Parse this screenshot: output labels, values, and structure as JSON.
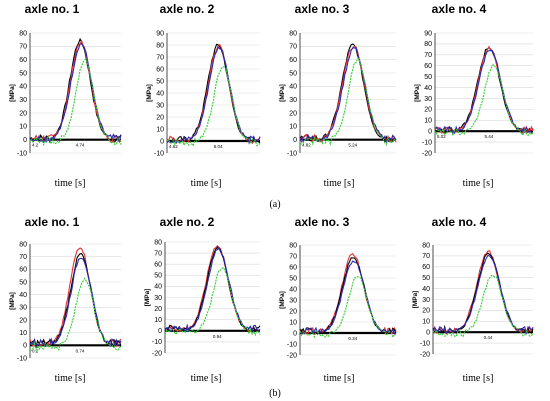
{
  "captions": {
    "a": "(a)",
    "b": "(b)"
  },
  "chart_data": [
    {
      "type": "line",
      "title": "axle no. 1",
      "ylabel": "[MPa]",
      "xlabel": "time [s]",
      "ylim": [
        -10,
        80
      ],
      "yticks": [
        -10,
        0,
        10,
        20,
        30,
        40,
        50,
        60,
        70,
        80
      ],
      "x_marks": [
        "4.74"
      ],
      "x_start_label": "4.2",
      "series": [
        {
          "color": "#000000",
          "peak": 74,
          "tail": 2
        },
        {
          "color": "#e03030",
          "peak": 73,
          "tail": 2
        },
        {
          "color": "#2b2bb0",
          "peak": 72,
          "tail": 2
        },
        {
          "color": "#33cc33",
          "peak": 60,
          "tail": 0
        }
      ]
    },
    {
      "type": "line",
      "title": "axle no. 2",
      "ylabel": "[MPa]",
      "xlabel": "time [s]",
      "ylim": [
        -10,
        90
      ],
      "yticks": [
        -10,
        0,
        10,
        20,
        30,
        40,
        50,
        60,
        70,
        80,
        90
      ],
      "x_marks": [
        "5.04"
      ],
      "x_start_label": "4.62",
      "series": [
        {
          "color": "#000000",
          "peak": 80,
          "tail": 2
        },
        {
          "color": "#e03030",
          "peak": 79,
          "tail": 2
        },
        {
          "color": "#2b2bb0",
          "peak": 78,
          "tail": 2
        },
        {
          "color": "#33cc33",
          "peak": 63,
          "tail": 0
        }
      ]
    },
    {
      "type": "line",
      "title": "axle no. 3",
      "ylabel": "[MPa]",
      "xlabel": "time [s]",
      "ylim": [
        -10,
        80
      ],
      "yticks": [
        -10,
        0,
        10,
        20,
        30,
        40,
        50,
        60,
        70,
        80
      ],
      "x_marks": [
        "5.24"
      ],
      "x_start_label": "4.82",
      "series": [
        {
          "color": "#000000",
          "peak": 71,
          "tail": 2
        },
        {
          "color": "#e03030",
          "peak": 70,
          "tail": 2
        },
        {
          "color": "#2b2bb0",
          "peak": 69,
          "tail": 2
        },
        {
          "color": "#33cc33",
          "peak": 60,
          "tail": 0
        }
      ]
    },
    {
      "type": "line",
      "title": "axle no. 4",
      "ylabel": "[MPa]",
      "xlabel": "time [s]",
      "ylim": [
        -20,
        90
      ],
      "yticks": [
        -20,
        -10,
        0,
        10,
        20,
        30,
        40,
        50,
        60,
        70,
        80,
        90
      ],
      "x_marks": [
        "5.44"
      ],
      "x_start_label": "5.02",
      "series": [
        {
          "color": "#000000",
          "peak": 77,
          "tail": 2
        },
        {
          "color": "#e03030",
          "peak": 76,
          "tail": 2
        },
        {
          "color": "#2b2bb0",
          "peak": 75,
          "tail": 2
        },
        {
          "color": "#33cc33",
          "peak": 60,
          "tail": 0
        }
      ]
    },
    {
      "type": "line",
      "title": "axle no. 1",
      "ylabel": "[MPa]",
      "xlabel": "time [s]",
      "ylim": [
        -10,
        80
      ],
      "yticks": [
        -10,
        0,
        10,
        20,
        30,
        40,
        50,
        60,
        70,
        80
      ],
      "x_marks": [
        "0.74"
      ],
      "x_start_label": "0.2",
      "series": [
        {
          "color": "#e03030",
          "peak": 78,
          "tail": 3
        },
        {
          "color": "#000000",
          "peak": 72,
          "tail": 3
        },
        {
          "color": "#2b2bb0",
          "peak": 70,
          "tail": 3
        },
        {
          "color": "#33cc33",
          "peak": 53,
          "tail": 0
        }
      ]
    },
    {
      "type": "line",
      "title": "axle no. 2",
      "ylabel": "[MPa]",
      "xlabel": "time [s]",
      "ylim": [
        -20,
        80
      ],
      "yticks": [
        -20,
        -10,
        0,
        10,
        20,
        30,
        40,
        50,
        60,
        70,
        80
      ],
      "x_marks": [
        "0.94"
      ],
      "x_start_label": "",
      "series": [
        {
          "color": "#e03030",
          "peak": 77,
          "tail": 3
        },
        {
          "color": "#000000",
          "peak": 75,
          "tail": 3
        },
        {
          "color": "#2b2bb0",
          "peak": 74,
          "tail": 3
        },
        {
          "color": "#33cc33",
          "peak": 57,
          "tail": 0
        }
      ]
    },
    {
      "type": "line",
      "title": "axle no. 3",
      "ylabel": "[MPa]",
      "xlabel": "time [s]",
      "ylim": [
        -20,
        80
      ],
      "yticks": [
        -20,
        -10,
        0,
        10,
        20,
        30,
        40,
        50,
        60,
        70,
        80
      ],
      "x_marks": [
        "0.34"
      ],
      "x_start_label": "",
      "series": [
        {
          "color": "#e03030",
          "peak": 72,
          "tail": 3
        },
        {
          "color": "#000000",
          "peak": 69,
          "tail": 3
        },
        {
          "color": "#2b2bb0",
          "peak": 66,
          "tail": 3
        },
        {
          "color": "#33cc33",
          "peak": 52,
          "tail": 0
        }
      ]
    },
    {
      "type": "line",
      "title": "axle no. 4",
      "ylabel": "[MPa]",
      "xlabel": "time [s]",
      "ylim": [
        -20,
        80
      ],
      "yticks": [
        -20,
        -10,
        0,
        10,
        20,
        30,
        40,
        50,
        60,
        70,
        80
      ],
      "x_marks": [
        "0.44"
      ],
      "x_start_label": "",
      "series": [
        {
          "color": "#e03030",
          "peak": 74,
          "tail": 3
        },
        {
          "color": "#000000",
          "peak": 72,
          "tail": 3
        },
        {
          "color": "#2b2bb0",
          "peak": 70,
          "tail": 3
        },
        {
          "color": "#33cc33",
          "peak": 53,
          "tail": 0
        }
      ]
    }
  ]
}
